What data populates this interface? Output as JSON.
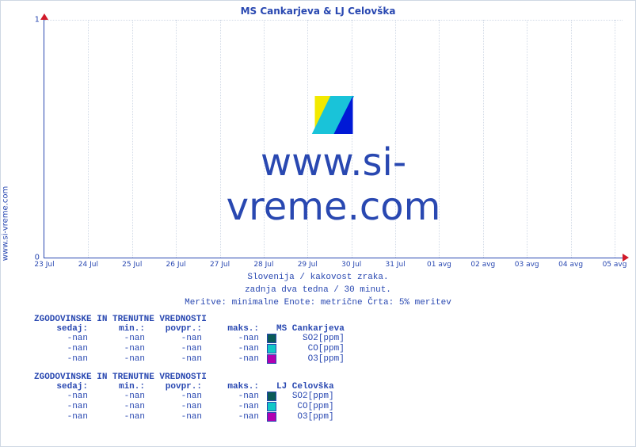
{
  "site_label": "www.si-vreme.com",
  "title": "MS Cankarjeva & LJ Celovška",
  "chart": {
    "type": "line",
    "ylim": [
      0,
      1
    ],
    "yticks": [
      {
        "v": 0,
        "label": "0"
      },
      {
        "v": 1,
        "label": "1"
      }
    ],
    "xticks": [
      "23 Jul",
      "24 Jul",
      "25 Jul",
      "26 Jul",
      "27 Jul",
      "28 Jul",
      "29 Jul",
      "30 Jul",
      "31 Jul",
      "01 avg",
      "02 avg",
      "03 avg",
      "04 avg",
      "05 avg"
    ],
    "grid_color": "#d3dbe7",
    "axis_color": "#2948b1",
    "arrow_color": "#d11a2a",
    "background_color": "#ffffff"
  },
  "watermark_text": "www.si-vreme.com",
  "caption": {
    "l1": "Slovenija / kakovost zraka.",
    "l2": "zadnja dva tedna / 30 minut.",
    "l3": "Meritve: minimalne  Enote: metrične  Črta: 5% meritev"
  },
  "tables_header": "ZGODOVINSKE IN TRENUTNE VREDNOSTI",
  "col_labels": {
    "now": "sedaj:",
    "min": "min.:",
    "avg": "povpr.:",
    "max": "maks.:"
  },
  "stations": [
    {
      "name": "MS Cankarjeva",
      "rows": [
        {
          "now": "-nan",
          "min": "-nan",
          "avg": "-nan",
          "max": "-nan",
          "color": "#0b5b57",
          "label": "SO2[ppm]"
        },
        {
          "now": "-nan",
          "min": "-nan",
          "avg": "-nan",
          "max": "-nan",
          "color": "#12c7c7",
          "label": "CO[ppm]"
        },
        {
          "now": "-nan",
          "min": "-nan",
          "avg": "-nan",
          "max": "-nan",
          "color": "#b100b1",
          "label": "O3[ppm]"
        }
      ]
    },
    {
      "name": "LJ Celovška",
      "rows": [
        {
          "now": "-nan",
          "min": "-nan",
          "avg": "-nan",
          "max": "-nan",
          "color": "#0b5b57",
          "label": "SO2[ppm]"
        },
        {
          "now": "-nan",
          "min": "-nan",
          "avg": "-nan",
          "max": "-nan",
          "color": "#12c7c7",
          "label": "CO[ppm]"
        },
        {
          "now": "-nan",
          "min": "-nan",
          "avg": "-nan",
          "max": "-nan",
          "color": "#b100b1",
          "label": "O3[ppm]"
        }
      ]
    }
  ]
}
